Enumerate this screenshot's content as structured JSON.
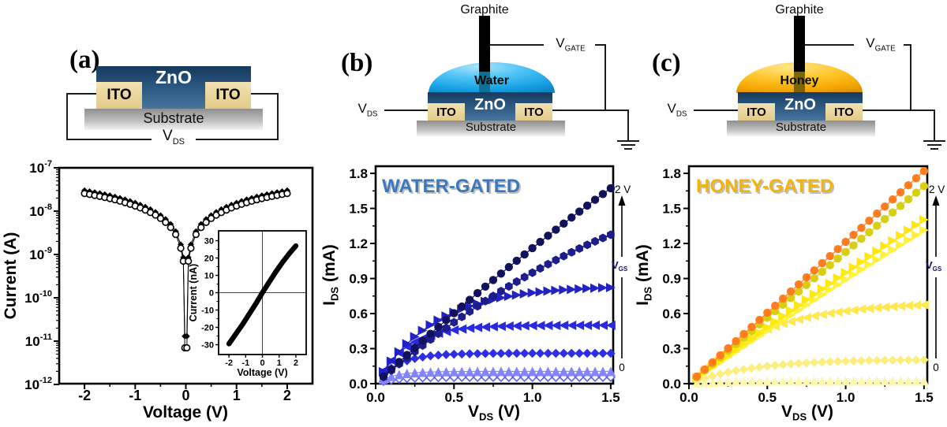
{
  "figure": {
    "background": "#ffffff",
    "panels": {
      "a": {
        "label": "(a)",
        "schematic": {
          "zno_label": "ZnO",
          "ito_left_label": "ITO",
          "ito_right_label": "ITO",
          "substrate_label": "Substrate",
          "vds_label": {
            "base": "V",
            "sub": "DS"
          }
        }
      },
      "b": {
        "label": "(b)",
        "schematic": {
          "graphite_label": "Graphite",
          "liquid_label": "Water",
          "zno_label": "ZnO",
          "ito_left_label": "ITO",
          "ito_right_label": "ITO",
          "substrate_label": "Substrate",
          "vds_label": {
            "base": "V",
            "sub": "DS"
          },
          "vgate_label": {
            "base": "V",
            "sub": "GATE"
          },
          "liquid_color": "#1ea7e8"
        }
      },
      "c": {
        "label": "(c)",
        "schematic": {
          "graphite_label": "Graphite",
          "liquid_label": "Honey",
          "zno_label": "ZnO",
          "ito_left_label": "ITO",
          "ito_right_label": "ITO",
          "substrate_label": "Substrate",
          "vds_label": {
            "base": "V",
            "sub": "DS"
          },
          "vgate_label": {
            "base": "V",
            "sub": "GATE"
          },
          "liquid_color": "#f5a800"
        }
      }
    }
  },
  "chart_data": [
    {
      "id": "chart-a",
      "type": "scatter",
      "title": "",
      "xlabel": "Voltage (V)",
      "ylabel": "Current (A)",
      "yscale": "log",
      "xlim": [
        -2.5,
        2.5
      ],
      "x_ticks": [
        -2,
        -1,
        0,
        1,
        2
      ],
      "y_tick_exponents": [
        -7,
        -8,
        -9,
        -10,
        -11,
        -12
      ],
      "symmetric": true,
      "v_abs": [
        2.0,
        1.9,
        1.8,
        1.7,
        1.6,
        1.5,
        1.4,
        1.3,
        1.2,
        1.1,
        1.0,
        0.9,
        0.8,
        0.7,
        0.6,
        0.5,
        0.4,
        0.3,
        0.2,
        0.1,
        0.05,
        0.02
      ],
      "series": [
        {
          "name": "sweep-1",
          "marker": "diamond",
          "color": "#000000",
          "i": [
            3e-08,
            2.85e-08,
            2.72e-08,
            2.58e-08,
            2.44e-08,
            2.3e-08,
            2.15e-08,
            2e-08,
            1.85e-08,
            1.7e-08,
            1.55e-08,
            1.4e-08,
            1.25e-08,
            1.1e-08,
            9.5e-09,
            8e-09,
            6.5e-09,
            5e-09,
            3.4e-09,
            1.7e-09,
            8.5e-10,
            1.3e-11
          ]
        },
        {
          "name": "sweep-2",
          "marker": "circle-open",
          "color": "#000000",
          "i": [
            2.55e-08,
            2.43e-08,
            2.31e-08,
            2.19e-08,
            2.07e-08,
            1.95e-08,
            1.83e-08,
            1.7e-08,
            1.57e-08,
            1.44e-08,
            1.31e-08,
            1.19e-08,
            1.06e-08,
            9.3e-09,
            8.1e-09,
            6.8e-09,
            5.5e-09,
            4.2e-09,
            2.9e-09,
            1.4e-09,
            7e-10,
            7e-12
          ]
        }
      ]
    },
    {
      "id": "chart-a-inset",
      "type": "line",
      "xlabel": "Voltage (V)",
      "ylabel": "Current (nA)",
      "xlim": [
        -2.6,
        2.6
      ],
      "ylim": [
        -36,
        36
      ],
      "x_ticks": [
        -2,
        -1,
        0,
        1,
        2
      ],
      "y_ticks": [
        30,
        20,
        10,
        0,
        -10,
        -20,
        -30
      ],
      "line_color": "#000000",
      "line_width": 6.5,
      "crosshair": true,
      "x": [
        -2,
        -1.6,
        -1.2,
        -0.8,
        -0.4,
        0,
        0.4,
        0.8,
        1.2,
        1.6,
        2
      ],
      "y": [
        -29.5,
        -24,
        -18.5,
        -12.5,
        -6.5,
        0,
        6,
        12,
        17.5,
        22.5,
        27
      ]
    },
    {
      "id": "chart-b",
      "type": "scatter",
      "title": "WATER-GATED",
      "title_color": "#3a79bd",
      "xlabel": {
        "base": "V",
        "sub": "DS",
        "unit": " (V)"
      },
      "ylabel": {
        "base": "I",
        "sub": "DS",
        "unit": " (mA)"
      },
      "xlim": [
        0,
        1.58
      ],
      "ylim": [
        0,
        1.86
      ],
      "x_ticks": [
        0,
        0.5,
        1.0,
        1.5
      ],
      "x_minor_ticks": [
        0.25,
        0.75,
        1.25
      ],
      "y_ticks": [
        0,
        0.3,
        0.6,
        0.9,
        1.2,
        1.5,
        1.8
      ],
      "y_minor_ticks": [
        0.15,
        0.45,
        0.75,
        1.05,
        1.35,
        1.65
      ],
      "gate_annotation": {
        "top": "2 V",
        "bottom": "0",
        "label": {
          "base": "V",
          "sub": "GS"
        },
        "label_color": "#141464"
      },
      "x": [
        0.05,
        0.1,
        0.15,
        0.2,
        0.25,
        0.3,
        0.35,
        0.4,
        0.45,
        0.5,
        0.55,
        0.6,
        0.65,
        0.7,
        0.75,
        0.8,
        0.85,
        0.9,
        0.95,
        1.0,
        1.05,
        1.1,
        1.15,
        1.2,
        1.25,
        1.3,
        1.35,
        1.4,
        1.45,
        1.5
      ],
      "series": [
        {
          "name": "curve-1",
          "marker": "circle",
          "color": "#12125c",
          "values": [
            0.062,
            0.124,
            0.186,
            0.246,
            0.307,
            0.367,
            0.427,
            0.486,
            0.544,
            0.603,
            0.66,
            0.718,
            0.775,
            0.831,
            0.887,
            0.942,
            0.998,
            1.052,
            1.106,
            1.16,
            1.213,
            1.266,
            1.318,
            1.37,
            1.422,
            1.473,
            1.524,
            1.574,
            1.623,
            1.673
          ]
        },
        {
          "name": "curve-2",
          "marker": "hexagon",
          "color": "#1d1d8c",
          "values": [
            0.057,
            0.113,
            0.168,
            0.222,
            0.275,
            0.327,
            0.378,
            0.428,
            0.477,
            0.525,
            0.572,
            0.618,
            0.663,
            0.707,
            0.75,
            0.792,
            0.833,
            0.873,
            0.912,
            0.95,
            0.987,
            1.023,
            1.058,
            1.092,
            1.125,
            1.157,
            1.188,
            1.218,
            1.247,
            1.275
          ]
        },
        {
          "name": "curve-3",
          "marker": "tri-right",
          "color": "#2121c4",
          "values": [
            0.102,
            0.192,
            0.271,
            0.341,
            0.402,
            0.455,
            0.502,
            0.543,
            0.579,
            0.611,
            0.639,
            0.664,
            0.685,
            0.704,
            0.72,
            0.735,
            0.748,
            0.759,
            0.769,
            0.778,
            0.785,
            0.792,
            0.798,
            0.803,
            0.807,
            0.811,
            0.815,
            0.818,
            0.821,
            0.823
          ]
        },
        {
          "name": "curve-4",
          "marker": "tri-left",
          "color": "#2929e0",
          "values": [
            0.111,
            0.197,
            0.264,
            0.316,
            0.357,
            0.388,
            0.413,
            0.432,
            0.447,
            0.459,
            0.468,
            0.475,
            0.481,
            0.485,
            0.488,
            0.491,
            0.493,
            0.494,
            0.496,
            0.497,
            0.497,
            0.498,
            0.498,
            0.499,
            0.499,
            0.499,
            0.5,
            0.5,
            0.5,
            0.5
          ]
        },
        {
          "name": "curve-5",
          "marker": "diamond",
          "color": "#2e2ee8",
          "values": [
            0.077,
            0.131,
            0.169,
            0.196,
            0.215,
            0.228,
            0.238,
            0.244,
            0.249,
            0.252,
            0.254,
            0.256,
            0.257,
            0.258,
            0.259,
            0.259,
            0.26,
            0.26,
            0.26,
            0.26,
            0.26,
            0.26,
            0.26,
            0.26,
            0.26,
            0.26,
            0.26,
            0.26,
            0.26,
            0.26
          ]
        },
        {
          "name": "curve-6",
          "marker": "tri-up",
          "color": "#8585fb",
          "values": [
            0.038,
            0.062,
            0.078,
            0.088,
            0.094,
            0.098,
            0.1,
            0.102,
            0.103,
            0.104,
            0.104,
            0.104,
            0.105,
            0.105,
            0.105,
            0.105,
            0.105,
            0.105,
            0.105,
            0.105,
            0.105,
            0.105,
            0.105,
            0.105,
            0.105,
            0.105,
            0.105,
            0.105,
            0.105,
            0.105
          ]
        },
        {
          "name": "curve-7",
          "marker": "diamond-open",
          "color": "#6060f0",
          "values": [
            0.02,
            0.032,
            0.041,
            0.046,
            0.049,
            0.051,
            0.053,
            0.053,
            0.054,
            0.054,
            0.055,
            0.055,
            0.055,
            0.055,
            0.055,
            0.055,
            0.055,
            0.055,
            0.055,
            0.055,
            0.055,
            0.055,
            0.055,
            0.055,
            0.055,
            0.055,
            0.055,
            0.055,
            0.055,
            0.055
          ]
        }
      ]
    },
    {
      "id": "chart-c",
      "type": "scatter",
      "title": "HONEY-GATED",
      "title_color": "#f2b40c",
      "xlabel": {
        "base": "V",
        "sub": "DS",
        "unit": " (V)"
      },
      "ylabel": {
        "base": "I",
        "sub": "DS",
        "unit": " (mA)"
      },
      "xlim": [
        0,
        1.58
      ],
      "ylim": [
        0,
        1.86
      ],
      "x_ticks": [
        0,
        0.5,
        1.0,
        1.5
      ],
      "x_minor_ticks": [
        0.25,
        0.75,
        1.25
      ],
      "y_ticks": [
        0,
        0.3,
        0.6,
        0.9,
        1.2,
        1.5,
        1.8
      ],
      "y_minor_ticks": [
        0.15,
        0.45,
        0.75,
        1.05,
        1.35,
        1.65
      ],
      "gate_annotation": {
        "top": "2 V",
        "bottom": "0",
        "label": {
          "base": "V",
          "sub": "GS"
        },
        "label_color": "#141464"
      },
      "x": [
        0.05,
        0.1,
        0.15,
        0.2,
        0.25,
        0.3,
        0.35,
        0.4,
        0.45,
        0.5,
        0.55,
        0.6,
        0.65,
        0.7,
        0.75,
        0.8,
        0.85,
        0.9,
        0.95,
        1.0,
        1.05,
        1.1,
        1.15,
        1.2,
        1.25,
        1.3,
        1.35,
        1.4,
        1.45,
        1.5
      ],
      "series": [
        {
          "name": "curve-1",
          "marker": "circle",
          "color": "#ff7d1f",
          "values": [
            0.061,
            0.121,
            0.182,
            0.243,
            0.303,
            0.364,
            0.425,
            0.485,
            0.546,
            0.607,
            0.667,
            0.728,
            0.789,
            0.849,
            0.91,
            0.97,
            1.031,
            1.092,
            1.152,
            1.213,
            1.274,
            1.334,
            1.395,
            1.456,
            1.516,
            1.577,
            1.638,
            1.698,
            1.759,
            1.82
          ]
        },
        {
          "name": "curve-2",
          "marker": "circle",
          "color": "#d8ce12",
          "values": [
            0.056,
            0.113,
            0.169,
            0.225,
            0.282,
            0.338,
            0.394,
            0.451,
            0.507,
            0.564,
            0.62,
            0.676,
            0.733,
            0.789,
            0.845,
            0.902,
            0.958,
            1.014,
            1.071,
            1.127,
            1.183,
            1.24,
            1.296,
            1.352,
            1.409,
            1.465,
            1.521,
            1.578,
            1.634,
            1.69
          ]
        },
        {
          "name": "curve-3",
          "marker": "tri-right",
          "color": "#ffe70f",
          "values": [
            0.049,
            0.098,
            0.146,
            0.195,
            0.243,
            0.291,
            0.339,
            0.387,
            0.435,
            0.483,
            0.53,
            0.577,
            0.624,
            0.671,
            0.718,
            0.765,
            0.811,
            0.858,
            0.904,
            0.95,
            0.996,
            1.042,
            1.087,
            1.133,
            1.178,
            1.223,
            1.268,
            1.313,
            1.358,
            1.403
          ]
        },
        {
          "name": "curve-4",
          "marker": "tri-right",
          "color": "#fff238",
          "values": [
            0.046,
            0.092,
            0.137,
            0.183,
            0.228,
            0.273,
            0.318,
            0.363,
            0.408,
            0.453,
            0.497,
            0.541,
            0.585,
            0.629,
            0.673,
            0.717,
            0.76,
            0.804,
            0.847,
            0.89,
            0.933,
            0.976,
            1.018,
            1.061,
            1.103,
            1.145,
            1.187,
            1.229,
            1.271,
            1.313
          ]
        },
        {
          "name": "curve-5",
          "marker": "tri-left",
          "color": "#ffe851",
          "values": [
            0.073,
            0.138,
            0.197,
            0.249,
            0.296,
            0.338,
            0.376,
            0.41,
            0.44,
            0.467,
            0.491,
            0.513,
            0.532,
            0.55,
            0.566,
            0.58,
            0.592,
            0.603,
            0.613,
            0.622,
            0.63,
            0.638,
            0.644,
            0.65,
            0.655,
            0.66,
            0.664,
            0.668,
            0.671,
            0.674
          ]
        },
        {
          "name": "curve-6",
          "marker": "diamond",
          "color": "#fcee7d",
          "values": [
            0.025,
            0.046,
            0.066,
            0.083,
            0.098,
            0.111,
            0.122,
            0.132,
            0.141,
            0.15,
            0.157,
            0.163,
            0.169,
            0.174,
            0.178,
            0.182,
            0.185,
            0.188,
            0.19,
            0.193,
            0.195,
            0.196,
            0.198,
            0.199,
            0.2,
            0.201,
            0.202,
            0.203,
            0.203,
            0.204
          ]
        },
        {
          "name": "curve-7",
          "marker": "tri-up",
          "color": "#fdf7b0",
          "values": [
            0.006,
            0.01,
            0.013,
            0.016,
            0.018,
            0.019,
            0.021,
            0.022,
            0.022,
            0.023,
            0.023,
            0.024,
            0.024,
            0.024,
            0.024,
            0.025,
            0.025,
            0.025,
            0.025,
            0.025,
            0.025,
            0.025,
            0.025,
            0.025,
            0.025,
            0.025,
            0.025,
            0.025,
            0.025,
            0.025
          ]
        }
      ]
    }
  ]
}
